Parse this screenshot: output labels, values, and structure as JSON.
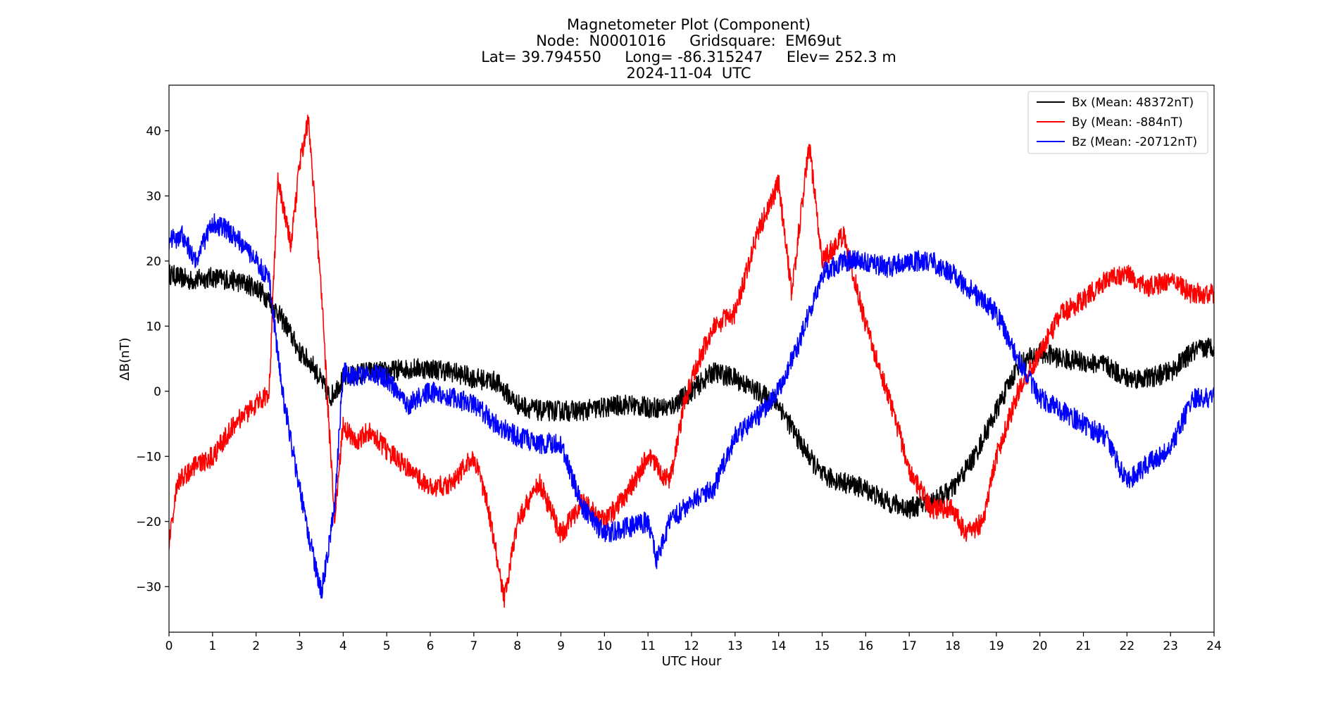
{
  "chart_data": {
    "type": "line",
    "title_lines": [
      "Magnetometer Plot (Component)",
      "Node:  N0001016     Gridsquare:  EM69ut",
      "Lat= 39.794550     Long= -86.315247     Elev= 252.3 m",
      "2024-11-04  UTC"
    ],
    "xlabel": "UTC Hour",
    "ylabel": "ΔB(nT)",
    "xlim": [
      0,
      24
    ],
    "ylim": [
      -37,
      47
    ],
    "xticks": [
      0,
      1,
      2,
      3,
      4,
      5,
      6,
      7,
      8,
      9,
      10,
      11,
      12,
      13,
      14,
      15,
      16,
      17,
      18,
      19,
      20,
      21,
      22,
      23,
      24
    ],
    "yticks": [
      -30,
      -20,
      -10,
      0,
      10,
      20,
      30,
      40
    ],
    "ytick_labels": [
      "−30",
      "−20",
      "−10",
      "0",
      "10",
      "20",
      "30",
      "40"
    ],
    "grid": false,
    "legend_position": "top-right",
    "series": [
      {
        "name": "Bx (Mean: 48372nT)",
        "color": "#000000",
        "x": [
          0,
          0.5,
          1,
          1.5,
          2,
          2.3,
          2.7,
          3,
          3.3,
          3.7,
          4,
          4.5,
          5,
          5.5,
          6,
          6.5,
          7,
          7.5,
          8,
          8.5,
          9,
          9.5,
          10,
          10.5,
          11,
          11.5,
          12,
          12.5,
          13,
          13.5,
          14,
          14.5,
          15,
          15.5,
          16,
          16.5,
          17,
          17.5,
          18,
          18.5,
          19,
          19.5,
          20,
          20.5,
          21,
          21.5,
          22,
          22.5,
          23,
          23.5,
          24
        ],
        "y": [
          18,
          17,
          17.5,
          17,
          16,
          14,
          10,
          6,
          4,
          -1,
          2,
          3,
          3,
          3.5,
          3.5,
          3,
          2,
          1.5,
          -2,
          -3,
          -3,
          -3,
          -2.5,
          -2,
          -2.5,
          -2.5,
          0,
          3,
          2,
          0,
          -2,
          -8,
          -13,
          -14,
          -15,
          -17,
          -18,
          -17,
          -15,
          -10,
          -3,
          4,
          6,
          5,
          4.5,
          4,
          2,
          2,
          3,
          6,
          7
        ]
      },
      {
        "name": "By (Mean: -884nT)",
        "color": "#ff0000",
        "x": [
          0,
          0.2,
          0.5,
          1,
          1.5,
          2,
          2.3,
          2.5,
          2.8,
          3,
          3.2,
          3.5,
          3.8,
          4,
          4.3,
          4.6,
          5,
          5.5,
          6,
          6.5,
          7,
          7.3,
          7.7,
          8,
          8.5,
          9,
          9.5,
          10,
          10.5,
          11,
          11.5,
          11.8,
          12,
          12.5,
          13,
          13.5,
          14,
          14.3,
          14.7,
          15,
          15.5,
          16,
          16.5,
          17,
          17.5,
          18,
          18.3,
          18.7,
          19,
          19.5,
          20,
          20.5,
          21,
          21.5,
          22,
          22.5,
          23,
          23.5,
          24
        ],
        "y": [
          -23,
          -14,
          -12,
          -10,
          -5,
          -2,
          0,
          33,
          22,
          35,
          42,
          15,
          -20,
          -5,
          -8,
          -6,
          -9,
          -12,
          -15,
          -14,
          -10,
          -17,
          -32,
          -20,
          -14,
          -22,
          -17,
          -20,
          -16,
          -10,
          -14,
          -3,
          2,
          10,
          12,
          24,
          32,
          15,
          38,
          20,
          24,
          10,
          0,
          -12,
          -18,
          -18,
          -22,
          -20,
          -10,
          0,
          6,
          12,
          14,
          17,
          18,
          16,
          17,
          15,
          15
        ]
      },
      {
        "name": "Bz (Mean: -20712nT)",
        "color": "#0000ff",
        "x": [
          0,
          0.3,
          0.6,
          1,
          1.5,
          2,
          2.3,
          2.6,
          3,
          3.3,
          3.5,
          3.8,
          4,
          4.3,
          4.6,
          5,
          5.5,
          6,
          6.5,
          7,
          7.5,
          8,
          8.5,
          9,
          9.5,
          10,
          10.5,
          11,
          11.2,
          11.5,
          12,
          12.5,
          13,
          13.5,
          14,
          14.5,
          15,
          15.5,
          16,
          16.5,
          17,
          17.5,
          18,
          18.5,
          19,
          19.5,
          20,
          20.5,
          21,
          21.5,
          22,
          22.5,
          23,
          23.5,
          24
        ],
        "y": [
          23,
          24,
          20,
          26,
          24,
          20,
          17,
          0,
          -15,
          -25,
          -31,
          -18,
          3,
          2,
          3,
          2,
          -2,
          0,
          -1,
          -2,
          -5,
          -7,
          -8,
          -8,
          -18,
          -22,
          -21,
          -20,
          -26,
          -20,
          -17,
          -15,
          -7,
          -4,
          0,
          8,
          18,
          20,
          20,
          19,
          20,
          20,
          18,
          15,
          12,
          5,
          -1,
          -3,
          -5,
          -7,
          -14,
          -11,
          -9,
          -1,
          -1
        ]
      }
    ]
  }
}
